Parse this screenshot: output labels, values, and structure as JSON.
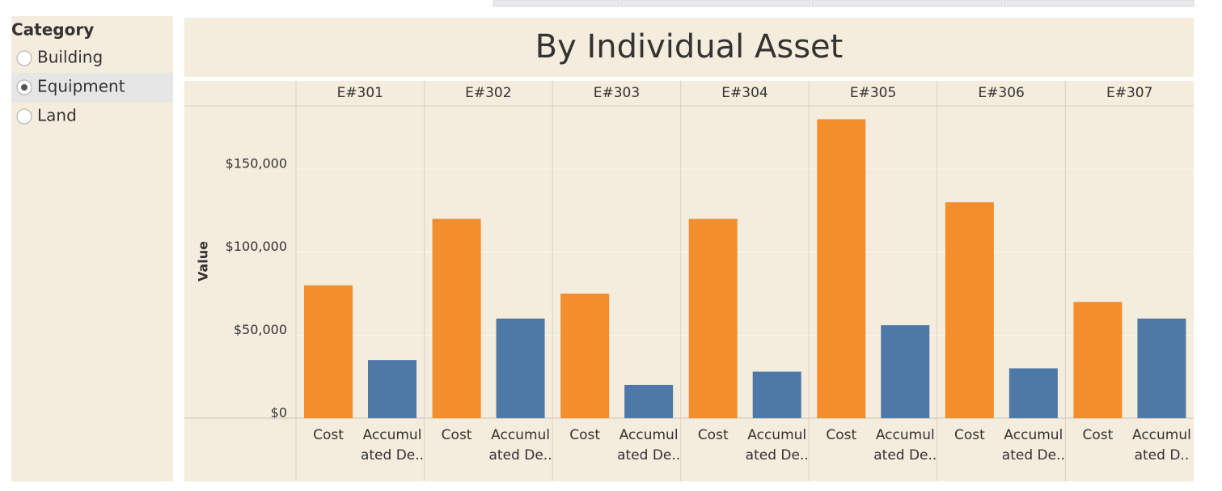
{
  "filter": {
    "title": "Category",
    "options": [
      "Building",
      "Equipment",
      "Land"
    ],
    "selected_index": 1
  },
  "chart_data": {
    "type": "bar",
    "title": "By Individual Asset",
    "y_label": "Value",
    "categories": [
      "E#301",
      "E#302",
      "E#303",
      "E#304",
      "E#305",
      "E#306",
      "E#307"
    ],
    "bar_labels": [
      [
        [
          "Cost"
        ],
        [
          "Accumul",
          "ated De.."
        ]
      ],
      [
        [
          "Cost"
        ],
        [
          "Accumul",
          "ated De.."
        ]
      ],
      [
        [
          "Cost"
        ],
        [
          "Accumul",
          "ated De.."
        ]
      ],
      [
        [
          "Cost"
        ],
        [
          "Accumul",
          "ated De.."
        ]
      ],
      [
        [
          "Cost"
        ],
        [
          "Accumul",
          "ated De.."
        ]
      ],
      [
        [
          "Cost"
        ],
        [
          "Accumul",
          "ated De.."
        ]
      ],
      [
        [
          "Cost"
        ],
        [
          "Accumul",
          "ated D.."
        ]
      ]
    ],
    "series": [
      {
        "color": "#f28e2b",
        "values": [
          80000,
          120000,
          75000,
          120000,
          180000,
          130000,
          70000
        ]
      },
      {
        "color": "#4e79a7",
        "values": [
          35000,
          60000,
          20000,
          28000,
          56000,
          30000,
          60000
        ]
      }
    ],
    "ylim": [
      0,
      188000
    ],
    "yticks": [
      {
        "value": 0,
        "label": "$0"
      },
      {
        "value": 50000,
        "label": "$50,000"
      },
      {
        "value": 100000,
        "label": "$100,000"
      },
      {
        "value": 150000,
        "label": "$150,000"
      }
    ],
    "grid": true
  }
}
